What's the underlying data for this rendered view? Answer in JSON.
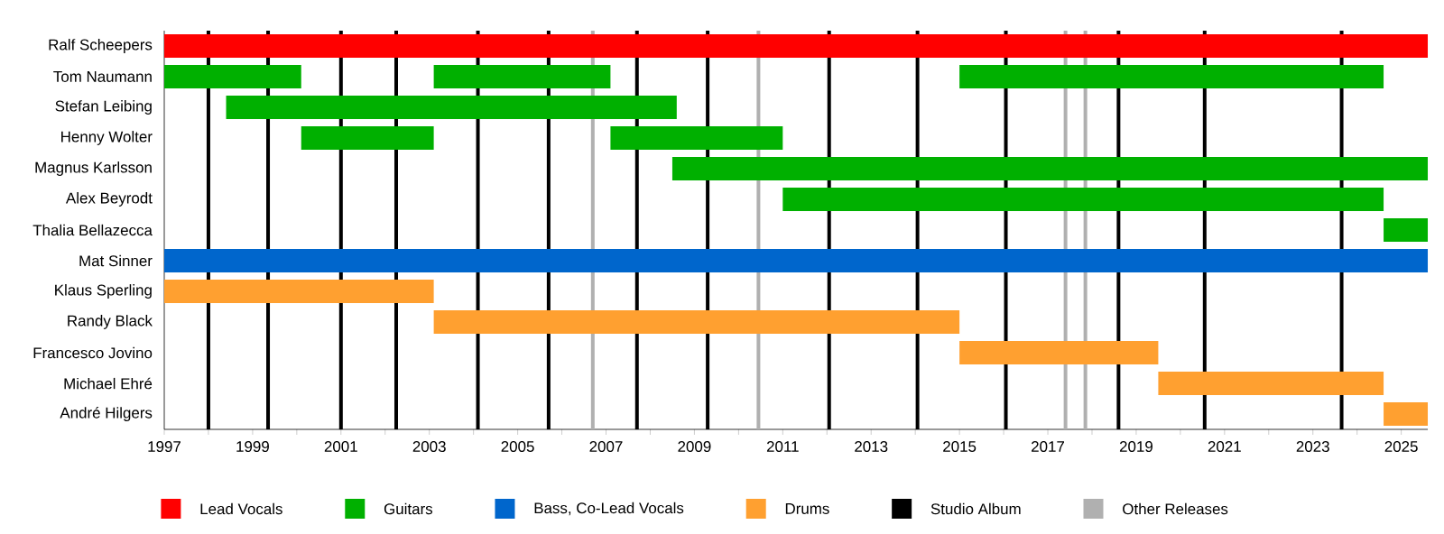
{
  "chart_data": {
    "type": "bar",
    "orientation": "horizontal",
    "categories": [
      "Ralf Scheepers",
      "Tom Naumann",
      "Stefan Leibing",
      "Henny Wolter",
      "Magnus Karlsson",
      "Alex Beyrodt",
      "Thalia Bellazecca",
      "Mat Sinner",
      "Klaus Sperling",
      "Randy Black",
      "Francesco Jovino",
      "Michael Ehré",
      "André Hilgers"
    ],
    "series": [
      {
        "name": "Lead Vocals",
        "color": "#ff0000",
        "base": [
          1997,
          null,
          null,
          null,
          null,
          null,
          null,
          null,
          null,
          null,
          null,
          null,
          null
        ],
        "values": [
          28.6,
          null,
          null,
          null,
          null,
          null,
          null,
          null,
          null,
          null,
          null,
          null,
          null
        ]
      },
      {
        "name": "Guitars",
        "color": "#00b000",
        "base": [
          null,
          1997,
          1998.4,
          2000.1,
          2008.5,
          2011.0,
          2024.6,
          null,
          null,
          null,
          null,
          null,
          null
        ],
        "values": [
          null,
          3.1,
          10.2,
          3.0,
          17.1,
          13.6,
          1.0,
          null,
          null,
          null,
          null,
          null,
          null
        ]
      },
      {
        "color": "#00b000",
        "base": [
          null,
          2003.1,
          null,
          2007.1,
          null,
          null,
          null,
          null,
          null,
          null,
          null,
          null,
          null
        ],
        "values": [
          null,
          4.0,
          null,
          3.9,
          null,
          null,
          null,
          null,
          null,
          null,
          null,
          null,
          null
        ]
      },
      {
        "color": "#00b000",
        "base": [
          null,
          2015.0,
          null,
          null,
          null,
          null,
          null,
          null,
          null,
          null,
          null,
          null,
          null
        ],
        "values": [
          null,
          9.6,
          null,
          null,
          null,
          null,
          null,
          null,
          null,
          null,
          null,
          null,
          null
        ]
      },
      {
        "name": "Bass, Co-Lead Vocals",
        "color": "#0066cc",
        "base": [
          null,
          null,
          null,
          null,
          null,
          null,
          null,
          1997,
          null,
          null,
          null,
          null,
          null
        ],
        "values": [
          null,
          null,
          null,
          null,
          null,
          null,
          null,
          28.6,
          null,
          null,
          null,
          null,
          null
        ]
      },
      {
        "name": "Drums",
        "color": "#ffa030",
        "base": [
          null,
          null,
          null,
          null,
          null,
          null,
          null,
          null,
          1997,
          2003.1,
          2015.0,
          2019.5,
          2024.6
        ],
        "values": [
          null,
          null,
          null,
          null,
          null,
          null,
          null,
          null,
          6.1,
          11.9,
          4.5,
          5.1,
          1.0
        ]
      }
    ],
    "xlim": [
      1997,
      2025.6
    ],
    "xticks": [
      1997,
      {
        "value": 1998,
        "label": null
      },
      1999,
      {
        "value": 2000,
        "label": null
      },
      2001,
      {
        "value": 2002,
        "label": null
      },
      2003,
      {
        "value": 2004,
        "label": null
      },
      2005,
      {
        "value": 2006,
        "label": null
      },
      2007,
      {
        "value": 2008,
        "label": null
      },
      2009,
      {
        "value": 2010,
        "label": null
      },
      2011,
      {
        "value": 2012,
        "label": null
      },
      2013,
      {
        "value": 2014,
        "label": null
      },
      2015,
      {
        "value": 2016,
        "label": null
      },
      2017,
      {
        "value": 2018,
        "label": null
      },
      2019,
      {
        "value": 2020,
        "label": null
      },
      2021,
      {
        "value": 2022,
        "label": null
      },
      2023,
      {
        "value": 2024,
        "label": null
      },
      2025
    ],
    "ref_lines": [
      {
        "axis": "x",
        "value": 1998.0,
        "color": "#000000",
        "label": "Studio Album"
      },
      {
        "axis": "x",
        "value": 1999.35,
        "color": "#000000"
      },
      {
        "axis": "x",
        "value": 2001.0,
        "color": "#000000"
      },
      {
        "axis": "x",
        "value": 2002.25,
        "color": "#000000"
      },
      {
        "axis": "x",
        "value": 2004.1,
        "color": "#000000"
      },
      {
        "axis": "x",
        "value": 2005.7,
        "color": "#000000"
      },
      {
        "axis": "x",
        "value": 2007.7,
        "color": "#000000"
      },
      {
        "axis": "x",
        "value": 2009.3,
        "color": "#000000"
      },
      {
        "axis": "x",
        "value": 2012.05,
        "color": "#000000"
      },
      {
        "axis": "x",
        "value": 2014.05,
        "color": "#000000"
      },
      {
        "axis": "x",
        "value": 2016.05,
        "color": "#000000"
      },
      {
        "axis": "x",
        "value": 2018.6,
        "color": "#000000"
      },
      {
        "axis": "x",
        "value": 2020.55,
        "color": "#000000"
      },
      {
        "axis": "x",
        "value": 2023.65,
        "color": "#000000"
      },
      {
        "axis": "x",
        "value": 2006.7,
        "color": "#b0b0b0",
        "label": "Other Releases"
      },
      {
        "axis": "x",
        "value": 2010.45,
        "color": "#b0b0b0"
      },
      {
        "axis": "x",
        "value": 2017.4,
        "color": "#b0b0b0"
      },
      {
        "axis": "x",
        "value": 2017.85,
        "color": "#b0b0b0"
      }
    ],
    "legend": "bottom"
  }
}
